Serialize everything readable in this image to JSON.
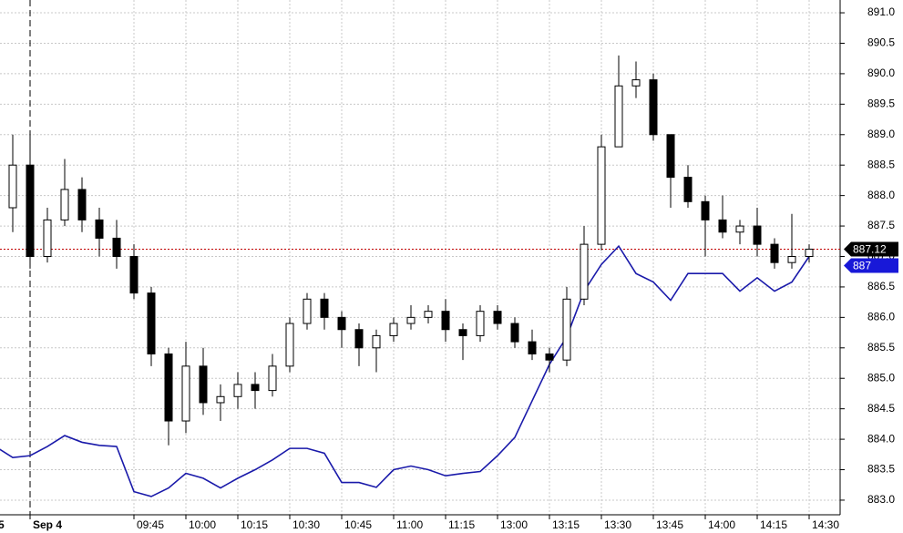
{
  "chart_data": {
    "type": "candlestick",
    "categories": [
      "5",
      null,
      "Sep 4",
      null,
      null,
      null,
      null,
      null,
      "09:45",
      null,
      null,
      "10:00",
      null,
      null,
      "10:15",
      null,
      null,
      "10:30",
      null,
      null,
      "10:45",
      null,
      null,
      "11:00",
      null,
      null,
      "11:15",
      null,
      null,
      "13:00",
      null,
      null,
      "13:15",
      null,
      null,
      "13:30",
      null,
      null,
      "13:45",
      null,
      null,
      "14:00",
      null,
      null,
      "14:15",
      null,
      null,
      "14:30"
    ],
    "open": [
      887.6,
      887.8,
      888.5,
      887.0,
      887.6,
      888.1,
      887.6,
      887.3,
      887.0,
      886.4,
      885.4,
      884.3,
      885.2,
      884.6,
      884.7,
      884.9,
      884.8,
      885.2,
      885.9,
      886.3,
      886.0,
      885.8,
      885.5,
      885.7,
      885.9,
      886.0,
      886.1,
      885.8,
      885.7,
      886.1,
      885.9,
      885.6,
      885.4,
      885.3,
      886.3,
      887.2,
      888.8,
      889.8,
      889.9,
      889.0,
      888.3,
      887.9,
      887.6,
      887.4,
      887.5,
      887.2,
      886.9,
      887.0
    ],
    "high": [
      887.9,
      889.0,
      889.0,
      887.8,
      888.6,
      888.3,
      887.8,
      887.6,
      887.2,
      886.5,
      885.5,
      885.6,
      885.5,
      884.9,
      885.1,
      885.1,
      885.4,
      886.0,
      886.4,
      886.4,
      886.1,
      885.9,
      885.8,
      886.0,
      886.2,
      886.2,
      886.3,
      885.9,
      886.2,
      886.2,
      886.0,
      885.8,
      885.5,
      886.5,
      887.5,
      889.0,
      890.3,
      890.2,
      890.0,
      889.0,
      888.5,
      888.0,
      888.0,
      887.6,
      887.8,
      887.3,
      887.7,
      887.2
    ],
    "low": [
      887.5,
      887.4,
      886.8,
      886.9,
      887.5,
      887.4,
      887.0,
      886.8,
      886.3,
      885.2,
      883.9,
      884.1,
      884.4,
      884.3,
      884.5,
      884.5,
      884.7,
      885.1,
      885.8,
      885.8,
      885.5,
      885.2,
      885.1,
      885.6,
      885.8,
      885.9,
      885.6,
      885.3,
      885.6,
      885.8,
      885.5,
      885.3,
      885.1,
      885.2,
      886.2,
      887.1,
      888.8,
      889.6,
      888.9,
      887.8,
      887.8,
      887.0,
      887.3,
      887.2,
      887.0,
      886.8,
      886.8,
      886.9
    ],
    "close": [
      887.6,
      888.5,
      887.0,
      887.6,
      888.1,
      887.6,
      887.3,
      887.0,
      886.4,
      885.4,
      884.3,
      885.2,
      884.6,
      884.7,
      884.9,
      884.8,
      885.2,
      885.9,
      886.3,
      886.0,
      885.8,
      885.5,
      885.7,
      885.9,
      886.0,
      886.1,
      885.8,
      885.7,
      886.1,
      885.9,
      885.6,
      885.4,
      885.3,
      886.3,
      887.2,
      888.8,
      889.8,
      889.9,
      889.0,
      888.3,
      887.9,
      887.6,
      887.4,
      887.5,
      887.2,
      886.9,
      887.0,
      887.12
    ],
    "color": "#000000",
    "last_price_color": "#c00000",
    "overlay": {
      "type": "line",
      "color": "#1a1aaa",
      "values": [
        883.88,
        883.7,
        883.73,
        883.88,
        884.06,
        883.95,
        883.9,
        883.88,
        883.14,
        883.06,
        883.2,
        883.44,
        883.36,
        883.2,
        883.36,
        883.5,
        883.66,
        883.85,
        883.85,
        883.77,
        883.29,
        883.29,
        883.21,
        883.5,
        883.56,
        883.5,
        883.4,
        883.44,
        883.47,
        883.73,
        884.03,
        884.63,
        885.23,
        885.68,
        886.43,
        886.87,
        887.17,
        886.72,
        886.58,
        886.28,
        886.72,
        886.72,
        886.72,
        886.43,
        886.65,
        886.43,
        886.58,
        887
      ]
    },
    "ylim": [
      882.76,
      891.21
    ],
    "yticks": [
      {
        "value": 883,
        "label": "883.0"
      },
      883.5,
      {
        "value": 884,
        "label": "884.0"
      },
      884.5,
      {
        "value": 885,
        "label": "885.0"
      },
      885.5,
      {
        "value": 886,
        "label": "886.0"
      },
      886.5,
      {
        "value": 887,
        "label": "887.0"
      },
      887.5,
      {
        "value": 888,
        "label": "888.0"
      },
      888.5,
      {
        "value": 889,
        "label": "889.0"
      },
      889.5,
      {
        "value": 890,
        "label": "890.0"
      },
      890.5,
      {
        "value": 891,
        "label": "891.0"
      }
    ],
    "grid": true
  }
}
